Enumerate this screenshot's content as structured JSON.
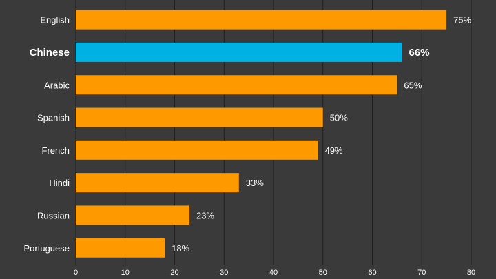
{
  "chart_data": {
    "type": "bar",
    "orientation": "horizontal",
    "title": "",
    "xlabel": "",
    "ylabel": "",
    "xlim": [
      0,
      80
    ],
    "x_ticks": [
      0,
      10,
      20,
      30,
      40,
      50,
      60,
      70,
      80
    ],
    "grid": true,
    "categories": [
      "English",
      "Chinese",
      "Arabic",
      "Spanish",
      "French",
      "Hindi",
      "Russian",
      "Portuguese"
    ],
    "values": [
      75,
      66,
      65,
      50,
      49,
      33,
      23,
      18
    ],
    "value_labels": [
      "75%",
      "66%",
      "65%",
      "50%",
      "49%",
      "33%",
      "23%",
      "18%"
    ],
    "highlight_category": "Chinese",
    "colors": {
      "bar": "#ff9900",
      "highlight": "#00b2e3",
      "background": "#3a3a3a",
      "grid": "#1f1f1f",
      "text": "#ffffff"
    }
  }
}
